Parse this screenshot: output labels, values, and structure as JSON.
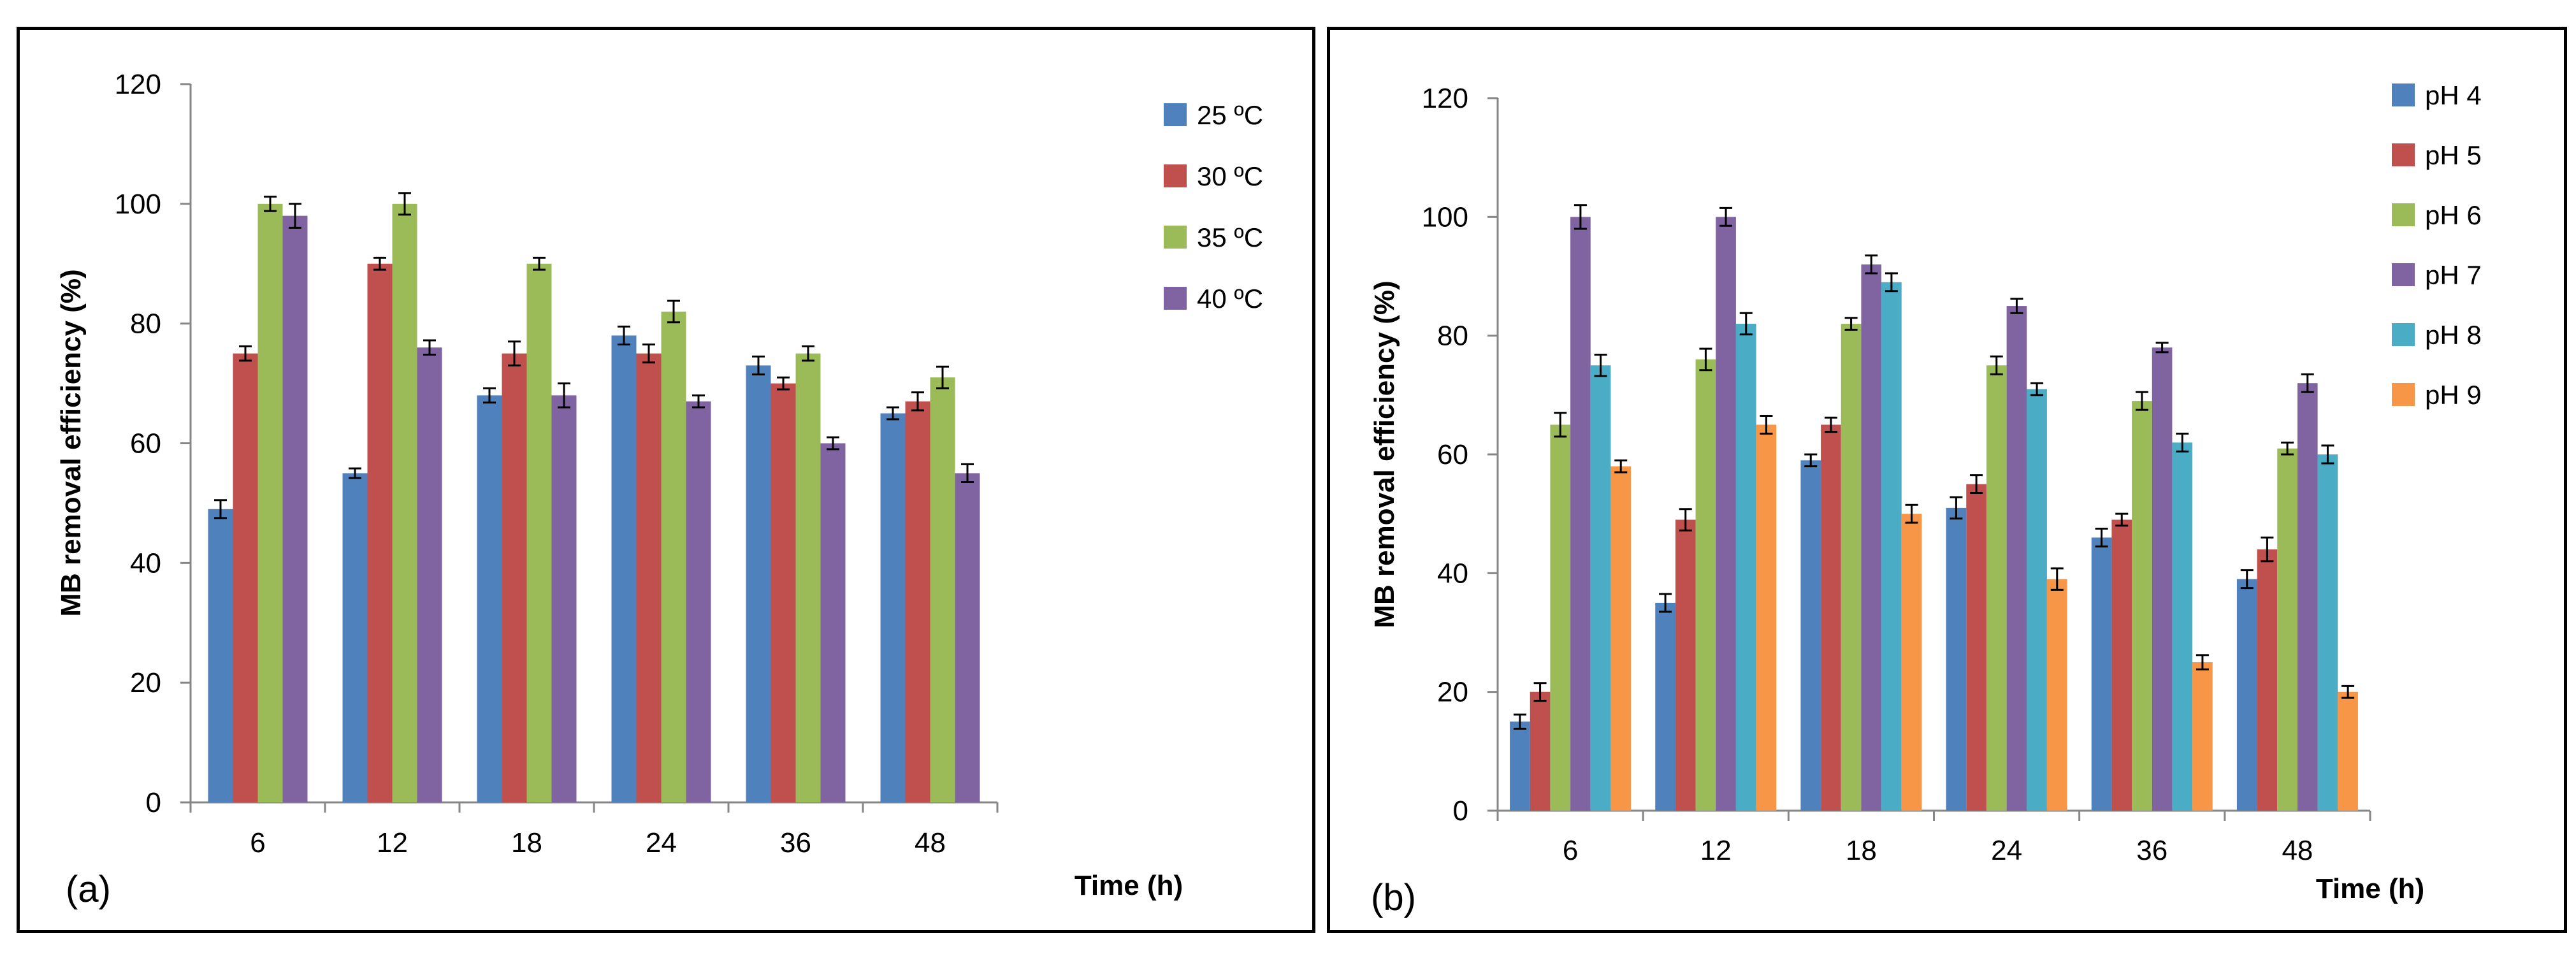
{
  "chart_data": [
    {
      "type": "bar",
      "panel_label": "(a)",
      "title": "",
      "xlabel": "Time (h)",
      "ylabel": "MB removal efficiency (%)",
      "ylim": [
        0,
        120
      ],
      "yticks": [
        "0",
        "20",
        "40",
        "60",
        "80",
        "100",
        "120"
      ],
      "categories": [
        "6",
        "12",
        "18",
        "24",
        "36",
        "48"
      ],
      "legend_position": "top-right",
      "grid": false,
      "error_bars": true,
      "series": [
        {
          "name": "25 ºC",
          "color": "#4F81BD",
          "values": [
            49,
            55,
            68,
            78,
            73,
            65
          ],
          "errors": [
            1.5,
            0.8,
            1.2,
            1.5,
            1.5,
            1.0
          ]
        },
        {
          "name": "30  ºC",
          "color": "#C0504D",
          "values": [
            75,
            90,
            75,
            75,
            70,
            67
          ],
          "errors": [
            1.2,
            1.0,
            2.0,
            1.5,
            1.0,
            1.5
          ]
        },
        {
          "name": "35  ºC",
          "color": "#9BBB59",
          "values": [
            100,
            100,
            90,
            82,
            75,
            71
          ],
          "errors": [
            1.2,
            1.8,
            1.0,
            1.8,
            1.2,
            1.8
          ]
        },
        {
          "name": "40  ºC",
          "color": "#8064A2",
          "values": [
            98,
            76,
            68,
            67,
            60,
            55
          ],
          "errors": [
            2.0,
            1.2,
            2.0,
            1.0,
            1.0,
            1.5
          ]
        }
      ]
    },
    {
      "type": "bar",
      "panel_label": "(b)",
      "title": "",
      "xlabel": "Time (h)",
      "ylabel": "MB removal efficiency (%)",
      "ylim": [
        0,
        120
      ],
      "yticks": [
        "0",
        "20",
        "40",
        "60",
        "80",
        "100",
        "120"
      ],
      "categories": [
        "6",
        "12",
        "18",
        "24",
        "36",
        "48"
      ],
      "legend_position": "top-right",
      "grid": false,
      "error_bars": true,
      "series": [
        {
          "name": "pH 4",
          "color": "#4F81BD",
          "values": [
            15,
            35,
            59,
            51,
            46,
            39
          ],
          "errors": [
            1.2,
            1.5,
            1.0,
            1.8,
            1.5,
            1.5
          ]
        },
        {
          "name": "pH 5",
          "color": "#C0504D",
          "values": [
            20,
            49,
            65,
            55,
            49,
            44
          ],
          "errors": [
            1.5,
            1.8,
            1.2,
            1.5,
            1.0,
            2.0
          ]
        },
        {
          "name": " pH 6",
          "color": "#9BBB59",
          "values": [
            65,
            76,
            82,
            75,
            69,
            61
          ],
          "errors": [
            2.0,
            1.8,
            1.0,
            1.5,
            1.5,
            1.0
          ]
        },
        {
          "name": "pH 7",
          "color": "#8064A2",
          "values": [
            100,
            100,
            92,
            85,
            78,
            72
          ],
          "errors": [
            2.0,
            1.5,
            1.5,
            1.2,
            0.8,
            1.5
          ]
        },
        {
          "name": "pH 8",
          "color": "#4BACC6",
          "values": [
            75,
            82,
            89,
            71,
            62,
            60
          ],
          "errors": [
            1.8,
            1.8,
            1.5,
            1.0,
            1.5,
            1.5
          ]
        },
        {
          "name": "pH 9",
          "color": "#F79646",
          "values": [
            58,
            65,
            50,
            39,
            25,
            20
          ],
          "errors": [
            1.0,
            1.5,
            1.5,
            1.8,
            1.2,
            1.0
          ]
        }
      ]
    }
  ]
}
